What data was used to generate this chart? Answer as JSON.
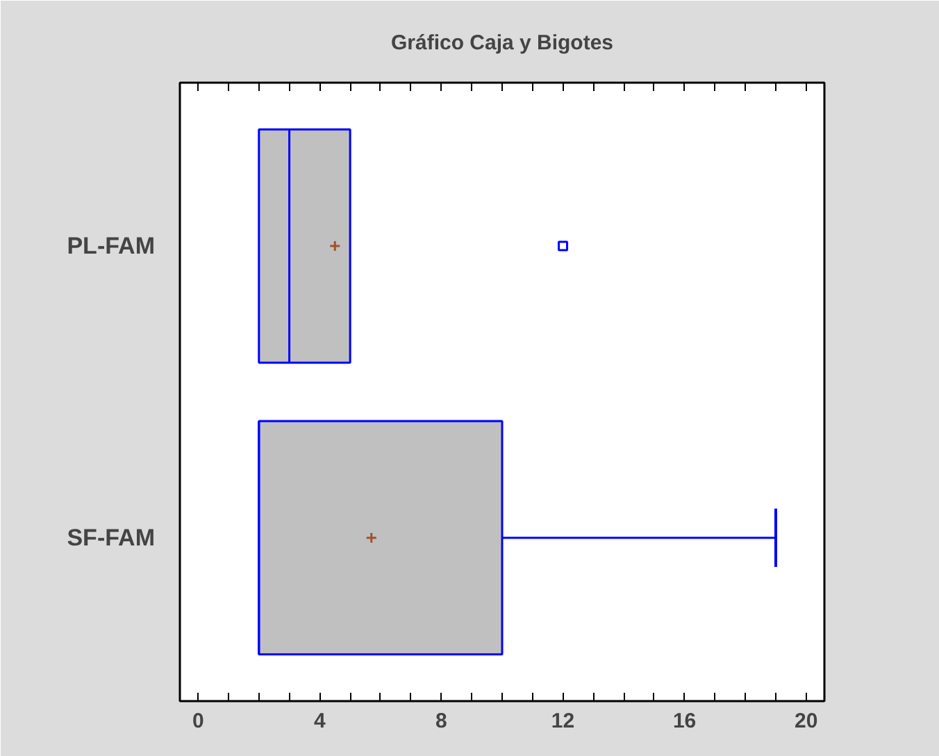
{
  "chart_data": {
    "type": "box",
    "title": "Gráfico Caja y Bigotes",
    "orientation": "horizontal",
    "categories": [
      "PL-FAM",
      "SF-FAM"
    ],
    "color": "#c0c0c0",
    "boxes": [
      {
        "low": 2,
        "q1": 2,
        "median": 3,
        "q3": 5,
        "high": 5,
        "mean": 4.5,
        "outliers": [
          12
        ]
      },
      {
        "low": 2,
        "q1": 2,
        "median": 2,
        "q3": 10,
        "high": 19,
        "mean": 5.7
      }
    ],
    "xlim": [
      -0.6,
      20.6
    ],
    "xticks": [
      0,
      {
        "value": 1,
        "label": null
      },
      {
        "value": 2,
        "label": null
      },
      {
        "value": 3,
        "label": null
      },
      4,
      {
        "value": 5,
        "label": null
      },
      {
        "value": 6,
        "label": null
      },
      {
        "value": 7,
        "label": null
      },
      8,
      {
        "value": 9,
        "label": null
      },
      {
        "value": 10,
        "label": null
      },
      {
        "value": 11,
        "label": null
      },
      12,
      {
        "value": 13,
        "label": null
      },
      {
        "value": 14,
        "label": null
      },
      {
        "value": 15,
        "label": null
      },
      16,
      {
        "value": 17,
        "label": null
      },
      {
        "value": 18,
        "label": null
      },
      {
        "value": 19,
        "label": null
      },
      20
    ],
    "grid": false
  }
}
